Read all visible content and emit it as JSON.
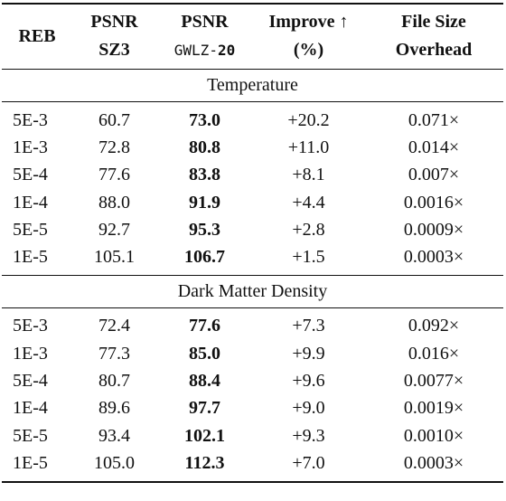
{
  "table": {
    "headers": {
      "reb": "REB",
      "psnr_sz3_line1": "PSNR",
      "psnr_sz3_line2": "SZ3",
      "psnr_gwlz_line1": "PSNR",
      "psnr_gwlz_method": "GWLZ-",
      "psnr_gwlz_suffix": "20",
      "improve_line1": "Improve ↑",
      "improve_line2": "(%)",
      "overhead_line1": "File Size",
      "overhead_line2": "Overhead"
    },
    "sections": [
      {
        "title": "Temperature",
        "rows": [
          {
            "reb": "5E-3",
            "psnr_sz3": "60.7",
            "psnr_gwlz": "73.0",
            "improve": "+20.2",
            "overhead": "0.071×"
          },
          {
            "reb": "1E-3",
            "psnr_sz3": "72.8",
            "psnr_gwlz": "80.8",
            "improve": "+11.0",
            "overhead": "0.014×"
          },
          {
            "reb": "5E-4",
            "psnr_sz3": "77.6",
            "psnr_gwlz": "83.8",
            "improve": "+8.1",
            "overhead": "0.007×"
          },
          {
            "reb": "1E-4",
            "psnr_sz3": "88.0",
            "psnr_gwlz": "91.9",
            "improve": "+4.4",
            "overhead": "0.0016×"
          },
          {
            "reb": "5E-5",
            "psnr_sz3": "92.7",
            "psnr_gwlz": "95.3",
            "improve": "+2.8",
            "overhead": "0.0009×"
          },
          {
            "reb": "1E-5",
            "psnr_sz3": "105.1",
            "psnr_gwlz": "106.7",
            "improve": "+1.5",
            "overhead": "0.0003×"
          }
        ]
      },
      {
        "title": "Dark Matter Density",
        "rows": [
          {
            "reb": "5E-3",
            "psnr_sz3": "72.4",
            "psnr_gwlz": "77.6",
            "improve": "+7.3",
            "overhead": "0.092×"
          },
          {
            "reb": "1E-3",
            "psnr_sz3": "77.3",
            "psnr_gwlz": "85.0",
            "improve": "+9.9",
            "overhead": "0.016×"
          },
          {
            "reb": "5E-4",
            "psnr_sz3": "80.7",
            "psnr_gwlz": "88.4",
            "improve": "+9.6",
            "overhead": "0.0077×"
          },
          {
            "reb": "1E-4",
            "psnr_sz3": "89.6",
            "psnr_gwlz": "97.7",
            "improve": "+9.0",
            "overhead": "0.0019×"
          },
          {
            "reb": "5E-5",
            "psnr_sz3": "93.4",
            "psnr_gwlz": "102.1",
            "improve": "+9.3",
            "overhead": "0.0010×"
          },
          {
            "reb": "1E-5",
            "psnr_sz3": "105.0",
            "psnr_gwlz": "112.3",
            "improve": "+7.0",
            "overhead": "0.0003×"
          }
        ]
      }
    ]
  }
}
